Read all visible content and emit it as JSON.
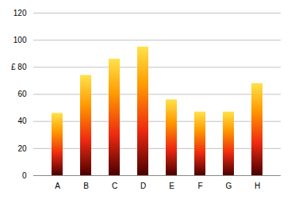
{
  "chart_data": {
    "type": "bar",
    "categories": [
      "A",
      "B",
      "C",
      "D",
      "E",
      "F",
      "G",
      "H"
    ],
    "values": [
      46,
      74,
      86,
      95,
      56,
      47,
      47,
      68
    ],
    "color": "#ee2a10",
    "ylim": [
      0,
      120
    ],
    "yticks": [
      0,
      20,
      40,
      60,
      {
        "value": 80,
        "label": "£ 80"
      },
      100,
      120
    ],
    "grid": true
  }
}
